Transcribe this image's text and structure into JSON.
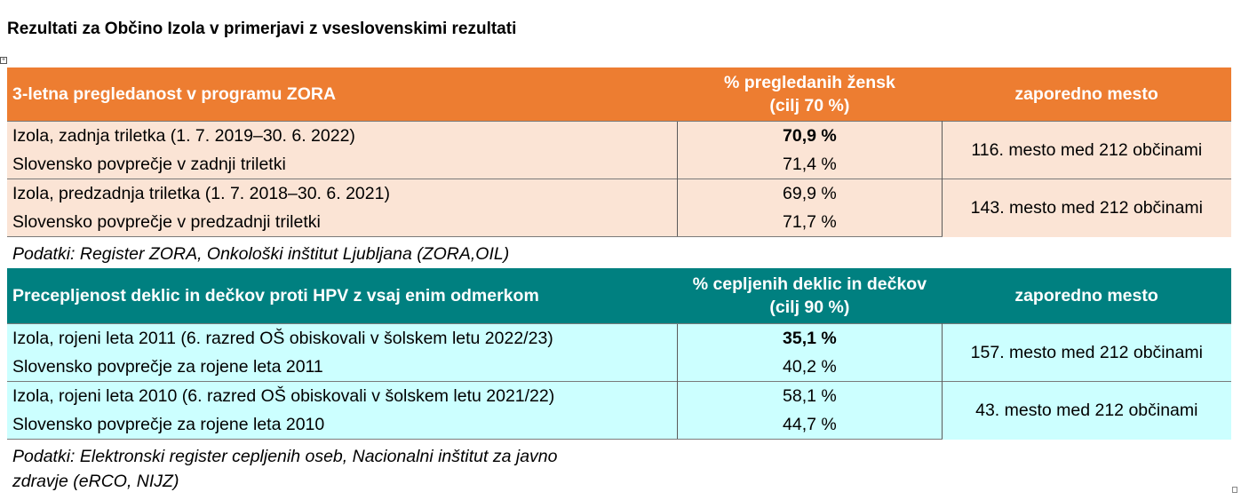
{
  "page_title": "Rezultati za Občino Izola v primerjavi z vseslovenskimi rezultati",
  "colors": {
    "zora_header": "#ed7d31",
    "zora_body": "#fbe4d5",
    "hpv_header": "#008080",
    "hpv_body": "#ccffff"
  },
  "zora": {
    "header": {
      "col1": "3-letna pregledanost v programu ZORA",
      "col2_line1": "% pregledanih žensk",
      "col2_line2": "(cilj 70 %)",
      "col3": "zaporedno mesto"
    },
    "rows": [
      {
        "label": "Izola, zadnja triletka (1. 7. 2019–30. 6. 2022)",
        "value": "70,9 %"
      },
      {
        "label": "Slovensko povprečje v zadnji triletki",
        "value": "71,4 %"
      },
      {
        "label": "Izola, predzadnja triletka (1. 7. 2018–30. 6. 2021)",
        "value": "69,9 %"
      },
      {
        "label": "Slovensko povprečje v predzadnji triletki",
        "value": "71,7 %"
      }
    ],
    "ranks": [
      "116. mesto med 212 občinami",
      "143. mesto med 212 občinami"
    ],
    "source": "Podatki: Register ZORA, Onkološki inštitut Ljubljana (ZORA,OIL)"
  },
  "hpv": {
    "header": {
      "col1": "Precepljenost deklic in dečkov proti HPV z vsaj enim odmerkom",
      "col2_line1": "% cepljenih deklic in dečkov",
      "col2_line2": "(cilj 90 %)",
      "col3": "zaporedno mesto"
    },
    "rows": [
      {
        "label": "Izola, rojeni leta 2011 (6. razred OŠ obiskovali v šolskem letu 2022/23)",
        "value": "35,1 %"
      },
      {
        "label": "Slovensko povprečje za rojene leta 2011",
        "value": "40,2 %"
      },
      {
        "label": "Izola, rojeni leta 2010 (6. razred OŠ obiskovali v šolskem letu 2021/22)",
        "value": "58,1 %"
      },
      {
        "label": "Slovensko povprečje za rojene leta 2010",
        "value": "44,7 %"
      }
    ],
    "ranks": [
      "157. mesto med 212 občinami",
      "43. mesto med 212 občinami"
    ],
    "source_line1": "Podatki: Elektronski register cepljenih oseb, Nacionalni inštitut za javno",
    "source_line2": "zdravje (eRCO, NIJZ)"
  }
}
